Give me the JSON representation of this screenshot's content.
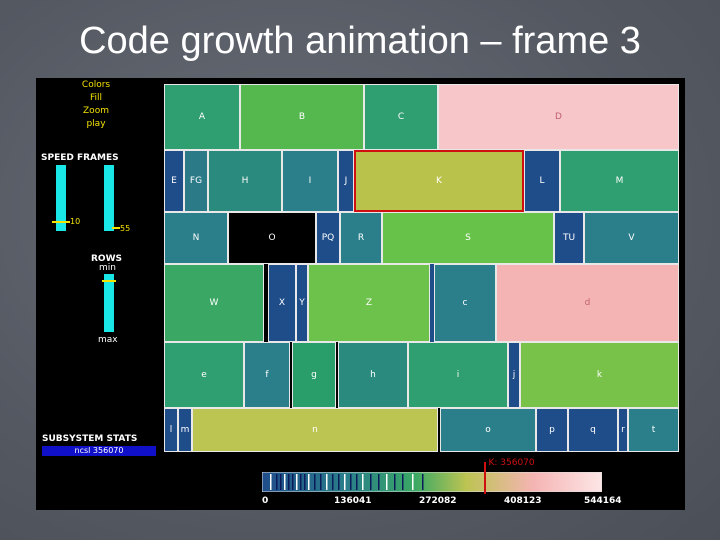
{
  "slide": {
    "title": "Code growth animation – frame 3"
  },
  "controls": {
    "menu": [
      "Colors",
      "Fill",
      "Zoom",
      "play"
    ],
    "speed_frames_label": "SPEED FRAMES",
    "speed_value": "10",
    "frames_value": "55",
    "rows_label": "ROWS",
    "rows_min": "min",
    "rows_max": "max",
    "subsystem_label": "SUBSYSTEM STATS",
    "subsystem_value": "ncsl 356070",
    "colors": {
      "bar": "#19e6e6",
      "label": "#f2e200",
      "stats": "#1010c8"
    }
  },
  "treemap": {
    "cells": [
      {
        "label": "A",
        "color": "#2f9e70"
      },
      {
        "label": "B",
        "color": "#55b84e"
      },
      {
        "label": "C",
        "color": "#2f9e70"
      },
      {
        "label": "D",
        "color": "#f6c6c8"
      },
      {
        "label": "E",
        "color": "#1f4d8a"
      },
      {
        "label": "FG",
        "color": "#2a7a88"
      },
      {
        "label": "H",
        "color": "#2a8a7e"
      },
      {
        "label": "I",
        "color": "#2a7f8a"
      },
      {
        "label": "J",
        "color": "#1f4d8a"
      },
      {
        "label": "K",
        "color": "#b9c24a"
      },
      {
        "label": "L",
        "color": "#1f4d8a"
      },
      {
        "label": "M",
        "color": "#2f9e70"
      },
      {
        "label": "N",
        "color": "#2a7f8a"
      },
      {
        "label": "O",
        "color": "#000000"
      },
      {
        "label": "PQ",
        "color": "#1f4d8a"
      },
      {
        "label": "R",
        "color": "#2a7f8a"
      },
      {
        "label": "S",
        "color": "#67c24a"
      },
      {
        "label": "TU",
        "color": "#1f4d8a"
      },
      {
        "label": "V",
        "color": "#2a7f8a"
      },
      {
        "label": "W",
        "color": "#3aa864"
      },
      {
        "label": "X",
        "color": "#1f4d8a"
      },
      {
        "label": "Y",
        "color": "#1f4d8a"
      },
      {
        "label": "Z",
        "color": "#6cc24a"
      },
      {
        "label": "a",
        "color": "#1f4d8a"
      },
      {
        "label": "c",
        "color": "#2a7f8a"
      },
      {
        "label": "d",
        "color": "#f5b4b4"
      },
      {
        "label": "e",
        "color": "#2f9e70"
      },
      {
        "label": "f",
        "color": "#2a7f8a"
      },
      {
        "label": "g",
        "color": "#2a9e6a"
      },
      {
        "label": "h",
        "color": "#2a8a7e"
      },
      {
        "label": "i",
        "color": "#2f9e70"
      },
      {
        "label": "j",
        "color": "#1f4d8a"
      },
      {
        "label": "k",
        "color": "#78c24a"
      },
      {
        "label": "l",
        "color": "#1f4d8a"
      },
      {
        "label": "m",
        "color": "#1f4d8a"
      },
      {
        "label": "n",
        "color": "#bcc452"
      },
      {
        "label": "o",
        "color": "#2a7f8a"
      },
      {
        "label": "p",
        "color": "#1f4d8a"
      },
      {
        "label": "q",
        "color": "#1f4d8a"
      },
      {
        "label": "r",
        "color": "#1f4d8a"
      },
      {
        "label": "t",
        "color": "#2a7f8a"
      }
    ]
  },
  "legend": {
    "ticks": [
      "0",
      "136041",
      "272082",
      "408123",
      "544164"
    ],
    "marker_label": "K: 356070",
    "marker_value": 356070,
    "max": 544164
  }
}
